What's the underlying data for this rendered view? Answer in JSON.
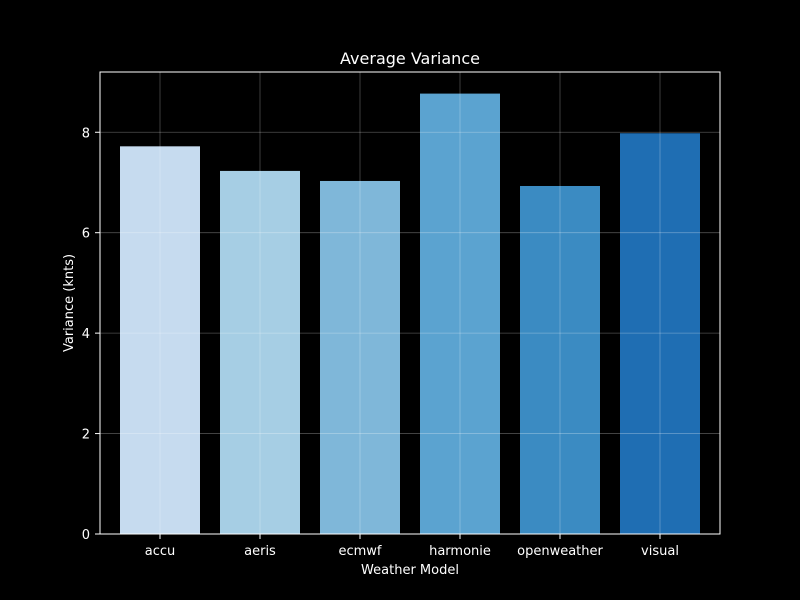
{
  "chart_data": {
    "type": "bar",
    "title": "Average Variance",
    "xlabel": "Weather Model",
    "ylabel": "Variance (knts)",
    "categories": [
      "accu",
      "aeris",
      "ecmwf",
      "harmonie",
      "openweather",
      "visual"
    ],
    "values": [
      7.72,
      7.23,
      7.03,
      8.77,
      6.93,
      7.98
    ],
    "colors": [
      "#c6dbef",
      "#a6cee4",
      "#7fb7d9",
      "#5ba3d0",
      "#3b8bc2",
      "#1f6eb3"
    ],
    "yticks": [
      0,
      2,
      4,
      6,
      8
    ],
    "ylim": [
      0,
      9.2
    ],
    "grid": true,
    "background": "#000000",
    "foreground": "#ffffff"
  }
}
